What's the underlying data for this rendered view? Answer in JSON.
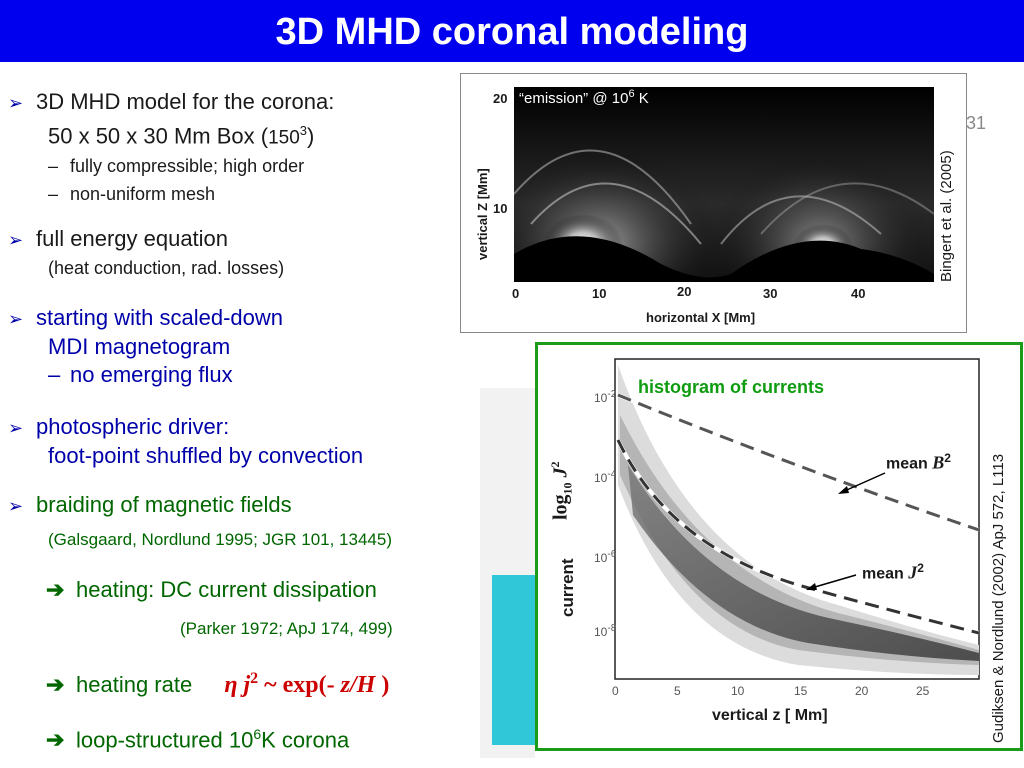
{
  "title": "3D MHD coronal modeling",
  "slide_number": "31",
  "bullets": {
    "b1_line1": "3D MHD model for the corona:",
    "b1_line2_a": "50 x 50 x 30 Mm Box  (",
    "b1_line2_b": "150",
    "b1_line2_sup": "3",
    "b1_line2_c": ")",
    "b1_sub1": "fully compressible;  high order",
    "b1_sub2": "non-uniform mesh",
    "b2_line1": "full energy equation",
    "b2_line2": "(heat conduction, rad. losses)",
    "b3_line1": "starting with scaled-down",
    "b3_line2": "MDI magnetogram",
    "b3_line3": "no emerging flux",
    "b4_line1": "photospheric driver:",
    "b4_line2": "foot-point shuffled by convection",
    "b5_line1": "braiding of magnetic fields",
    "b5_ref": "(Galsgaard, Nordlund 1995; JGR 101, 13445)",
    "r1": "heating: DC current dissipation",
    "r1_ref": "(Parker 1972; ApJ 174, 499)",
    "r2": "heating rate",
    "r2_eta": "η",
    "r2_j": "j",
    "r2_sup": "2",
    "r2_rest": " ~ exp(- ",
    "r2_zH": "z/H",
    "r2_close": " )",
    "r3_a": "loop-structured 10",
    "r3_sup": "6",
    "r3_b": "K corona"
  },
  "figure1": {
    "label_a": "“emission” @ 10",
    "label_sup": "6",
    "label_b": " K",
    "xlabel": "horizontal  X  [Mm]",
    "ylabel": "vertical  Z  [Mm]",
    "xticks": [
      "0",
      "10",
      "20",
      "30",
      "40"
    ],
    "yticks": [
      "20",
      "10"
    ],
    "credit": "Bingert et al. (2005)"
  },
  "figure2": {
    "title": "histogram of currents",
    "xlabel": "vertical   z  [ Mm]",
    "ylabel_a": "current",
    "ylabel_b": "log",
    "ylabel_sub": "10",
    "ylabel_c": " J",
    "ylabel_sup": "2",
    "xticks": [
      "0",
      "5",
      "10",
      "15",
      "20",
      "25"
    ],
    "yticks_base": "10",
    "yticks_exp": [
      "-2",
      "-4",
      "-6",
      "-8"
    ],
    "mean_B_a": "mean  ",
    "mean_B_b": "B",
    "mean_B_sup": "2",
    "mean_J_a": "mean  ",
    "mean_J_b": "J",
    "mean_J_sup": "2",
    "credit": "Gudiksen & Nordlund (2002) ApJ 572, L113"
  },
  "colors": {
    "title_bar": "#0000ee",
    "frame_green": "#1a9c1a",
    "accent_red": "#cc0000",
    "accent_green": "#006600",
    "accent_blue": "#0000aa"
  }
}
